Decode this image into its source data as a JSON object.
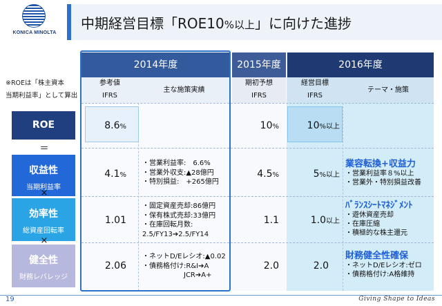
{
  "brand": {
    "name": "KONICA MINOLTA",
    "color": "#1c55a8"
  },
  "title": {
    "prefix": "中期経営目標「ROE10",
    "unit": "%以上",
    "suffix": "」に向けた進捗"
  },
  "note": {
    "line1": "※ROEは「株主資本",
    "line2": "当期利益率」として算出"
  },
  "categories": {
    "roe": "ROE",
    "eq": "＝",
    "revenue_main": "収益性",
    "revenue_sub": "当期利益率",
    "mult1": "×",
    "efficiency_main": "効率性",
    "efficiency_sub": "総資産回転率",
    "mult2": "×",
    "health_main": "健全性",
    "health_sub": "財務レバレッジ"
  },
  "headers": {
    "y2014": "2014年度",
    "y2015": "2015年度",
    "y2016": "2016年度",
    "ref_label": "参考値",
    "ref_std": "IFRS",
    "measures": "主な施策実績",
    "plan_label": "期初予想",
    "plan_std": "IFRS",
    "target_label": "経営目標",
    "target_std": "IFRS",
    "theme": "テーマ・施策"
  },
  "rows": {
    "roe": {
      "v2014": "8.6",
      "v2014_unit": "%",
      "v2015": "10",
      "v2015_unit": "%",
      "v2016": "10",
      "v2016_unit": "%以上"
    },
    "revenue": {
      "v2014": "4.1",
      "v2014_unit": "%",
      "measures": "・営業利益率:　6.6%\n・営業外収支:▲28億円\n・特別損益:　+265億円",
      "v2015": "4.5",
      "v2015_unit": "%",
      "v2016": "5",
      "v2016_unit": "%以上",
      "theme_head": "業容転換+収益力",
      "theme_body": "・営業利益率８%以上\n・営業外・特別損益改善"
    },
    "efficiency": {
      "v2014": "1.01",
      "measures": "・固定資産売却:86億円\n・保有株式売却:33億円\n・在庫回転月数:\n2.5/FY13➔2.5/FY14",
      "v2015": "1.1",
      "v2016": "1.0",
      "v2016_unit": "以上",
      "theme_head": "ﾊﾞﾗﾝｽｼｰﾄﾏﾈｼﾞﾒﾝﾄ",
      "theme_body": "・遊休資産売却\n・在庫圧縮\n・積極的な株主還元"
    },
    "health": {
      "v2014": "2.06",
      "measures": "・ネットD/Eレシオ:▲0.02\n・債務格付け:R&I➔A\n　　　　　　JCR➔A+",
      "v2015": "2.0",
      "v2016": "2.0",
      "theme_head": "財務健全性確保",
      "theme_body": "・ネットD/Eレシオ:ゼロ\n・債務格付け:A格維持"
    }
  },
  "footer": {
    "page": "19",
    "tagline": "Giving Shape to Ideas"
  },
  "colors": {
    "accent": "#2f6fd0",
    "roe_box": "#1f3f7e",
    "revenue_box": "#2268d8",
    "efficiency_box": "#2aa4e4",
    "health_box": "#b7b8de",
    "theme_text": "#1f5fd6"
  }
}
